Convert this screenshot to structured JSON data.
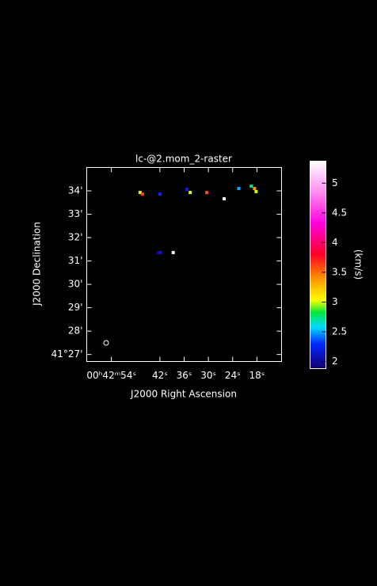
{
  "chart_data": {
    "type": "raster",
    "title": "lc-@2.mom_2-raster",
    "x_label": "J2000 Right Ascension",
    "y_label": "J2000 Declination",
    "colorbar_label": "(km/s)",
    "xlim": [
      60.1,
      11.9
    ],
    "ylim": [
      26.7,
      35.0
    ],
    "xticks": [
      {
        "value": 54,
        "label": "00ʰ42ᵐ54ˢ"
      },
      {
        "value": 42,
        "label": "42ˢ"
      },
      {
        "value": 36,
        "label": "36ˢ"
      },
      {
        "value": 30,
        "label": "30ˢ"
      },
      {
        "value": 24,
        "label": "24ˢ"
      },
      {
        "value": 18,
        "label": "18ˢ"
      }
    ],
    "yticks": [
      {
        "value": 27,
        "label": "41°27'"
      },
      {
        "value": 28,
        "label": "28'"
      },
      {
        "value": 29,
        "label": "29'"
      },
      {
        "value": 30,
        "label": "30'"
      },
      {
        "value": 31,
        "label": "31'"
      },
      {
        "value": 32,
        "label": "32'"
      },
      {
        "value": 33,
        "label": "33'"
      },
      {
        "value": 34,
        "label": "34'"
      }
    ],
    "clim": [
      1.88,
      5.37
    ],
    "cticks": [
      2,
      2.5,
      3,
      3.5,
      4,
      4.5,
      5
    ],
    "x": [
      46.9,
      46.3,
      42.0,
      35.3,
      34.5,
      30.4,
      26.1,
      22.5,
      19.4,
      18.6,
      18.2,
      42.4,
      41.8,
      38.7
    ],
    "y": [
      33.93,
      33.86,
      33.86,
      34.07,
      33.93,
      33.93,
      33.66,
      34.1,
      34.2,
      34.1,
      33.97,
      31.36,
      31.36,
      31.36
    ],
    "values": [
      3.0,
      3.6,
      2.3,
      2.2,
      3.0,
      3.6,
      5.3,
      2.5,
      2.7,
      3.4,
      3.0,
      2.0,
      2.1,
      5.3
    ]
  }
}
